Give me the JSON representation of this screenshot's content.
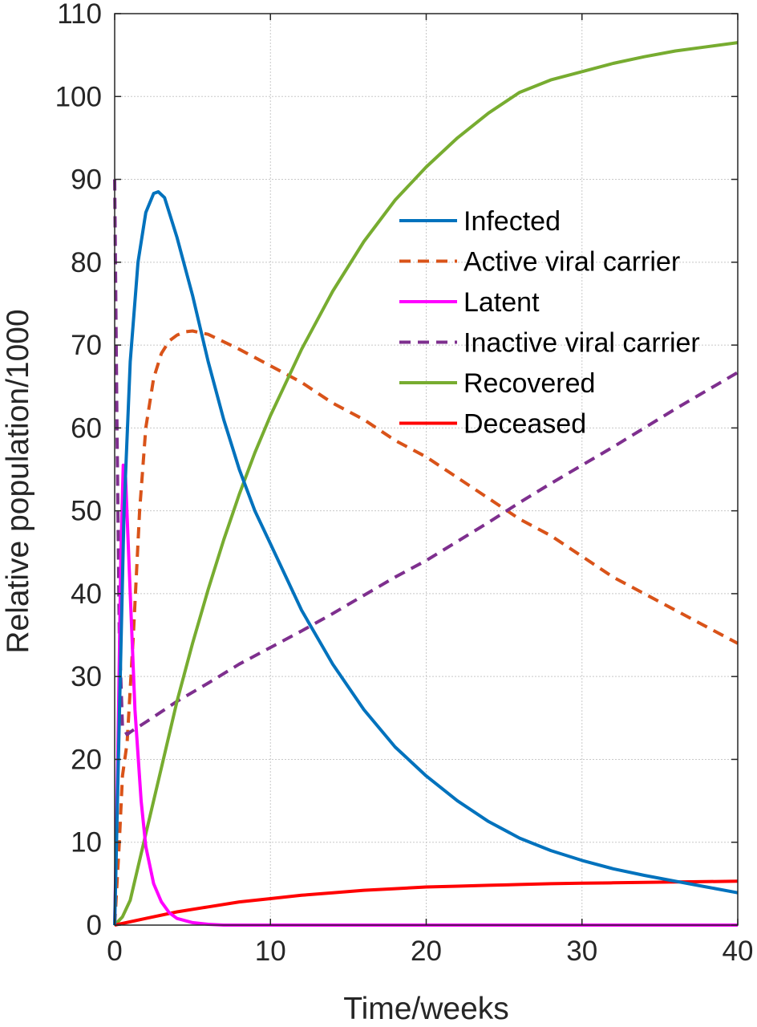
{
  "chart_data": {
    "type": "line",
    "xlabel": "Time/weeks",
    "ylabel": "Relative population/1000",
    "xlim": [
      0,
      40
    ],
    "ylim": [
      0,
      110
    ],
    "xticks": [
      0,
      10,
      20,
      30,
      40
    ],
    "yticks": [
      0,
      10,
      20,
      30,
      40,
      50,
      60,
      70,
      80,
      90,
      100,
      110
    ],
    "grid": true,
    "legend_position": "top-right",
    "series": [
      {
        "name": "Infected",
        "color": "#0072BD",
        "dash": "solid",
        "points": [
          [
            0,
            0
          ],
          [
            0.3,
            25
          ],
          [
            0.6,
            50
          ],
          [
            1,
            68
          ],
          [
            1.5,
            80
          ],
          [
            2,
            86
          ],
          [
            2.5,
            88.3
          ],
          [
            2.8,
            88.5
          ],
          [
            3.2,
            87.8
          ],
          [
            4,
            83
          ],
          [
            5,
            76
          ],
          [
            6,
            68
          ],
          [
            7,
            61
          ],
          [
            8,
            55
          ],
          [
            9,
            50
          ],
          [
            10,
            46
          ],
          [
            12,
            38
          ],
          [
            14,
            31.5
          ],
          [
            16,
            26
          ],
          [
            18,
            21.5
          ],
          [
            20,
            18
          ],
          [
            22,
            15
          ],
          [
            24,
            12.5
          ],
          [
            26,
            10.5
          ],
          [
            28,
            9
          ],
          [
            30,
            7.8
          ],
          [
            32,
            6.8
          ],
          [
            34,
            6
          ],
          [
            36,
            5.3
          ],
          [
            38,
            4.6
          ],
          [
            40,
            3.9
          ]
        ]
      },
      {
        "name": "Active viral carrier",
        "color": "#D95319",
        "dash": "dashed",
        "points": [
          [
            0,
            0
          ],
          [
            0.3,
            10
          ],
          [
            0.5,
            18
          ],
          [
            0.8,
            22
          ],
          [
            1.2,
            35
          ],
          [
            1.6,
            50
          ],
          [
            2,
            60
          ],
          [
            2.5,
            66
          ],
          [
            3,
            69
          ],
          [
            3.5,
            70.5
          ],
          [
            4,
            71.2
          ],
          [
            4.5,
            71.6
          ],
          [
            5,
            71.7
          ],
          [
            6,
            71.3
          ],
          [
            8,
            69.5
          ],
          [
            10,
            67.5
          ],
          [
            12,
            65.5
          ],
          [
            14,
            63
          ],
          [
            16,
            61
          ],
          [
            18,
            58.5
          ],
          [
            20,
            56.5
          ],
          [
            22,
            54
          ],
          [
            24,
            51.5
          ],
          [
            26,
            49
          ],
          [
            28,
            47
          ],
          [
            30,
            44.5
          ],
          [
            32,
            42
          ],
          [
            34,
            40
          ],
          [
            36,
            38
          ],
          [
            38,
            36
          ],
          [
            40,
            34
          ]
        ]
      },
      {
        "name": "Latent",
        "color": "#FF00FF",
        "dash": "solid",
        "points": [
          [
            0,
            0
          ],
          [
            0.2,
            20
          ],
          [
            0.4,
            45
          ],
          [
            0.55,
            55.5
          ],
          [
            0.7,
            54
          ],
          [
            1,
            40
          ],
          [
            1.3,
            26
          ],
          [
            1.7,
            15
          ],
          [
            2,
            9.5
          ],
          [
            2.5,
            5
          ],
          [
            3,
            2.8
          ],
          [
            3.5,
            1.5
          ],
          [
            4,
            0.8
          ],
          [
            5,
            0.3
          ],
          [
            6,
            0.1
          ],
          [
            7,
            0
          ],
          [
            10,
            0
          ],
          [
            20,
            0
          ],
          [
            30,
            0
          ],
          [
            40,
            0
          ]
        ]
      },
      {
        "name": "Inactive viral carrier",
        "color": "#7E2F8E",
        "dash": "dashed",
        "points": [
          [
            0,
            90
          ],
          [
            0.15,
            60
          ],
          [
            0.3,
            35
          ],
          [
            0.5,
            24
          ],
          [
            0.8,
            23
          ],
          [
            1,
            23.3
          ],
          [
            2,
            24.5
          ],
          [
            4,
            27
          ],
          [
            6,
            29.2
          ],
          [
            8,
            31.5
          ],
          [
            10,
            33.5
          ],
          [
            12,
            35.5
          ],
          [
            14,
            37.6
          ],
          [
            16,
            39.8
          ],
          [
            18,
            42
          ],
          [
            20,
            44
          ],
          [
            22,
            46.3
          ],
          [
            24,
            48.6
          ],
          [
            26,
            51
          ],
          [
            28,
            53.3
          ],
          [
            30,
            55.5
          ],
          [
            32,
            57.7
          ],
          [
            34,
            60
          ],
          [
            36,
            62.3
          ],
          [
            38,
            64.5
          ],
          [
            40,
            66.7
          ]
        ]
      },
      {
        "name": "Recovered",
        "color": "#77AC30",
        "dash": "solid",
        "points": [
          [
            0,
            0
          ],
          [
            0.5,
            1
          ],
          [
            1,
            3
          ],
          [
            1.5,
            7
          ],
          [
            2,
            11
          ],
          [
            3,
            19
          ],
          [
            4,
            27
          ],
          [
            5,
            34
          ],
          [
            6,
            40.5
          ],
          [
            7,
            46.5
          ],
          [
            8,
            52
          ],
          [
            9,
            57
          ],
          [
            10,
            61.5
          ],
          [
            12,
            69.5
          ],
          [
            14,
            76.5
          ],
          [
            16,
            82.5
          ],
          [
            18,
            87.5
          ],
          [
            20,
            91.5
          ],
          [
            22,
            95
          ],
          [
            24,
            98
          ],
          [
            26,
            100.5
          ],
          [
            28,
            102
          ],
          [
            30,
            103
          ],
          [
            32,
            104
          ],
          [
            34,
            104.8
          ],
          [
            36,
            105.5
          ],
          [
            38,
            106
          ],
          [
            40,
            106.5
          ]
        ]
      },
      {
        "name": "Deceased",
        "color": "#FF0000",
        "dash": "solid",
        "points": [
          [
            0,
            0
          ],
          [
            2,
            0.8
          ],
          [
            4,
            1.6
          ],
          [
            6,
            2.2
          ],
          [
            8,
            2.8
          ],
          [
            10,
            3.2
          ],
          [
            12,
            3.6
          ],
          [
            14,
            3.9
          ],
          [
            16,
            4.2
          ],
          [
            18,
            4.4
          ],
          [
            20,
            4.6
          ],
          [
            22,
            4.7
          ],
          [
            24,
            4.8
          ],
          [
            26,
            4.9
          ],
          [
            28,
            5
          ],
          [
            30,
            5.05
          ],
          [
            32,
            5.1
          ],
          [
            34,
            5.15
          ],
          [
            36,
            5.2
          ],
          [
            38,
            5.25
          ],
          [
            40,
            5.3
          ]
        ]
      }
    ]
  }
}
